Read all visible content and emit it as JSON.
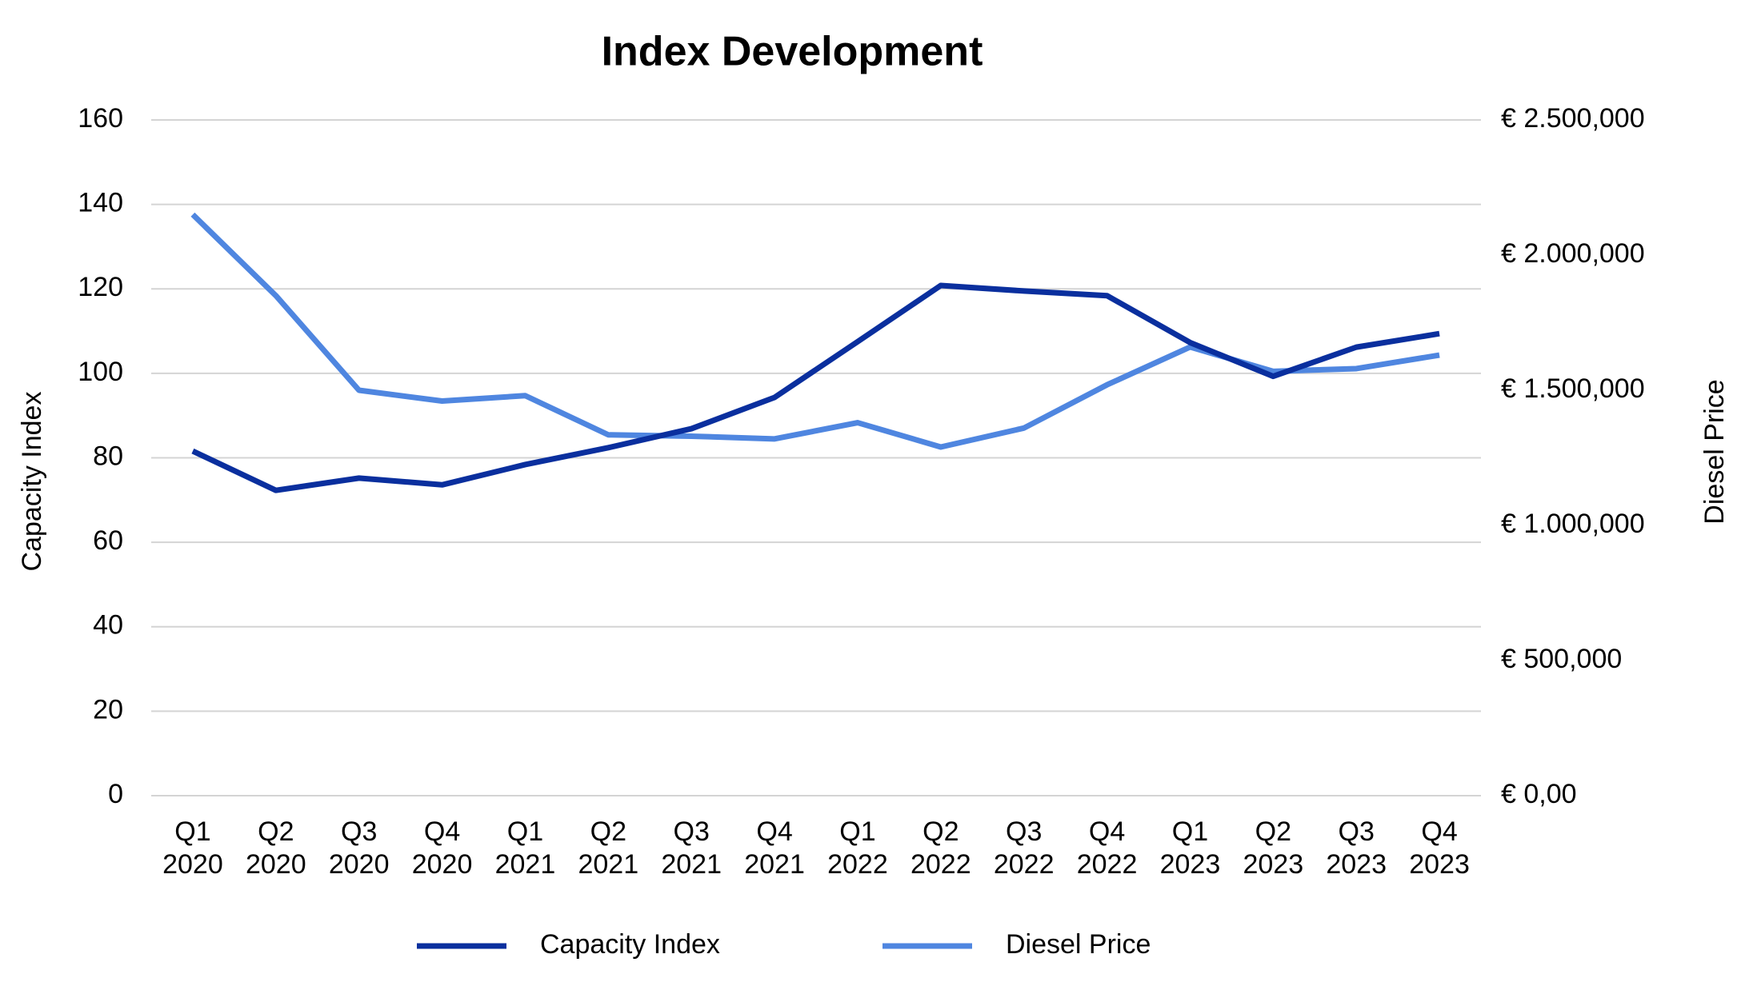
{
  "chart_data": {
    "type": "line",
    "title": "Index Development",
    "y_label": "Capacity Index",
    "y2_label": "Diesel Price",
    "categories": [
      "Q1 2020",
      "Q2 2020",
      "Q3 2020",
      "Q4 2020",
      "Q1 2021",
      "Q2 2021",
      "Q3 2021",
      "Q4 2021",
      "Q1 2022",
      "Q2 2022",
      "Q3 2022",
      "Q4 2022",
      "Q1 2023",
      "Q2 2023",
      "Q3 2023",
      "Q4 2023"
    ],
    "series": [
      {
        "name": "Capacity Index",
        "color": "#0a2f9e",
        "axis": "y",
        "values": [
          81.6,
          72.3,
          75.2,
          73.6,
          78.4,
          82.4,
          86.9,
          94.3,
          107.5,
          120.8,
          119.5,
          118.4,
          107.3,
          99.3,
          106.2,
          109.4
        ]
      },
      {
        "name": "Diesel Price",
        "color": "#4f86e0",
        "axis": "y2",
        "values": [
          2150000,
          1850000,
          1500000,
          1460000,
          1480000,
          1335000,
          1330000,
          1320000,
          1380000,
          1290000,
          1360000,
          1520000,
          1660000,
          1570000,
          1580000,
          1630000
        ]
      }
    ],
    "ylim": [
      0,
      160
    ],
    "yticks": [
      0,
      20,
      40,
      60,
      80,
      100,
      120,
      140,
      160
    ],
    "y2lim": [
      0,
      2500000
    ],
    "y2ticks": [
      {
        "value": 0,
        "label": "€ 0,00"
      },
      {
        "value": 500000,
        "label": "€ 500,000"
      },
      {
        "value": 1000000,
        "label": "€ 1.000,000"
      },
      {
        "value": 1500000,
        "label": "€ 1.500,000"
      },
      {
        "value": 2000000,
        "label": "€ 2.000,000"
      },
      {
        "value": 2500000,
        "label": "€ 2.500,000"
      }
    ],
    "grid": true,
    "legend": "bottom"
  }
}
